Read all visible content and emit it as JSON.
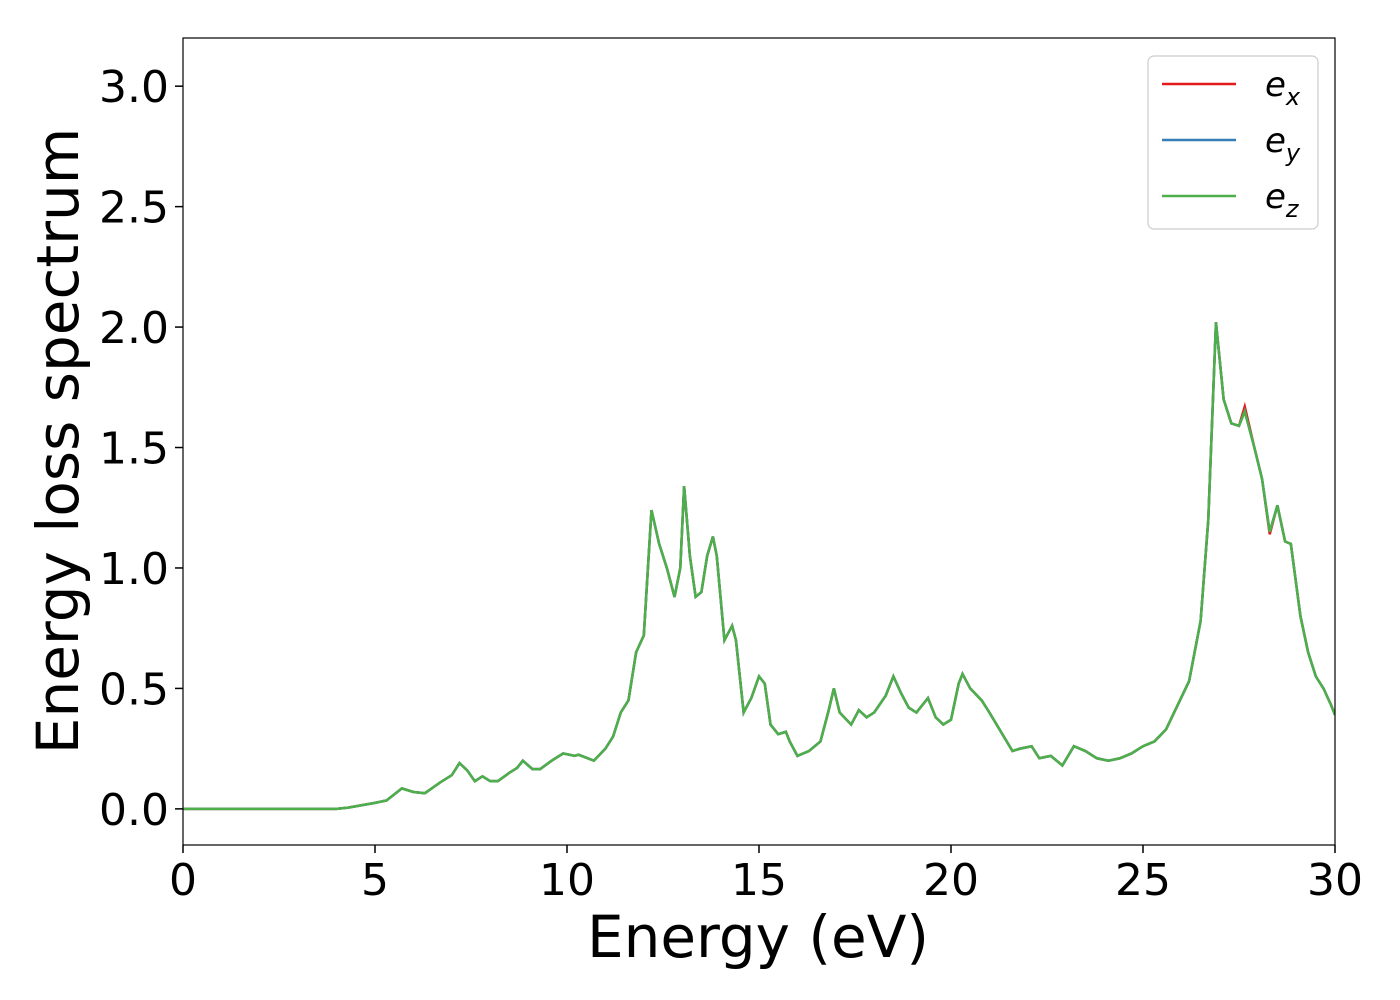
{
  "chart_data": {
    "type": "line",
    "xlabel": "Energy (eV)",
    "ylabel": "Energy loss spectrum",
    "x": [
      0,
      1,
      2,
      3,
      4,
      4.3,
      5,
      5.3,
      5.7,
      6.0,
      6.3,
      6.7,
      7.0,
      7.2,
      7.4,
      7.6,
      7.8,
      8.0,
      8.2,
      8.5,
      8.7,
      8.85,
      9.1,
      9.3,
      9.6,
      9.9,
      10.2,
      10.3,
      10.7,
      11.0,
      11.2,
      11.4,
      11.6,
      11.8,
      12.0,
      12.2,
      12.4,
      12.6,
      12.8,
      12.95,
      13.05,
      13.2,
      13.35,
      13.5,
      13.65,
      13.8,
      13.9,
      14.1,
      14.3,
      14.4,
      14.6,
      14.8,
      15.0,
      15.15,
      15.3,
      15.5,
      15.7,
      15.8,
      16.0,
      16.3,
      16.6,
      16.8,
      16.95,
      17.1,
      17.4,
      17.6,
      17.8,
      18.0,
      18.3,
      18.5,
      18.7,
      18.9,
      19.1,
      19.3,
      19.4,
      19.6,
      19.8,
      20.0,
      20.2,
      20.3,
      20.5,
      20.8,
      21.0,
      21.3,
      21.6,
      21.8,
      22.1,
      22.3,
      22.6,
      22.9,
      23.2,
      23.5,
      23.8,
      24.1,
      24.4,
      24.7,
      25.0,
      25.3,
      25.6,
      25.9,
      26.2,
      26.5,
      26.7,
      26.9,
      27.1,
      27.3,
      27.5,
      27.65,
      27.9,
      28.1,
      28.3,
      28.5,
      28.7,
      28.85,
      29.1,
      29.3,
      29.5,
      29.7,
      29.9,
      30.0
    ],
    "series": [
      {
        "name": "ex",
        "color": "#e41a1c",
        "values": [
          0,
          0,
          0,
          0,
          0,
          0.005,
          0.025,
          0.035,
          0.085,
          0.07,
          0.065,
          0.11,
          0.14,
          0.19,
          0.16,
          0.115,
          0.135,
          0.115,
          0.115,
          0.15,
          0.17,
          0.2,
          0.165,
          0.165,
          0.2,
          0.23,
          0.22,
          0.225,
          0.2,
          0.25,
          0.3,
          0.4,
          0.45,
          0.65,
          0.72,
          1.24,
          1.1,
          1.0,
          0.88,
          1.0,
          1.34,
          1.05,
          0.88,
          0.9,
          1.05,
          1.13,
          1.05,
          0.7,
          0.76,
          0.7,
          0.4,
          0.46,
          0.55,
          0.52,
          0.35,
          0.31,
          0.32,
          0.28,
          0.22,
          0.24,
          0.28,
          0.4,
          0.5,
          0.4,
          0.35,
          0.41,
          0.38,
          0.4,
          0.47,
          0.55,
          0.48,
          0.42,
          0.4,
          0.44,
          0.46,
          0.38,
          0.35,
          0.37,
          0.52,
          0.56,
          0.5,
          0.45,
          0.4,
          0.32,
          0.24,
          0.25,
          0.26,
          0.21,
          0.22,
          0.18,
          0.26,
          0.24,
          0.21,
          0.2,
          0.21,
          0.23,
          0.26,
          0.28,
          0.33,
          0.43,
          0.53,
          0.78,
          1.2,
          2.02,
          1.7,
          1.6,
          1.59,
          1.67,
          1.5,
          1.37,
          1.14,
          1.26,
          1.11,
          1.1,
          0.8,
          0.65,
          0.55,
          0.5,
          0.43,
          0.39
        ]
      },
      {
        "name": "ey",
        "color": "#377eb8",
        "values": [
          0,
          0,
          0,
          0,
          0,
          0.005,
          0.025,
          0.035,
          0.085,
          0.07,
          0.065,
          0.11,
          0.14,
          0.19,
          0.16,
          0.115,
          0.135,
          0.115,
          0.115,
          0.15,
          0.17,
          0.2,
          0.165,
          0.165,
          0.2,
          0.23,
          0.22,
          0.225,
          0.2,
          0.25,
          0.3,
          0.4,
          0.45,
          0.65,
          0.72,
          1.24,
          1.1,
          1.0,
          0.88,
          1.0,
          1.34,
          1.05,
          0.88,
          0.9,
          1.05,
          1.13,
          1.05,
          0.7,
          0.76,
          0.7,
          0.4,
          0.46,
          0.55,
          0.52,
          0.35,
          0.31,
          0.32,
          0.28,
          0.22,
          0.24,
          0.28,
          0.4,
          0.5,
          0.4,
          0.35,
          0.41,
          0.38,
          0.4,
          0.47,
          0.55,
          0.48,
          0.42,
          0.4,
          0.44,
          0.46,
          0.38,
          0.35,
          0.37,
          0.52,
          0.56,
          0.5,
          0.45,
          0.4,
          0.32,
          0.24,
          0.25,
          0.26,
          0.21,
          0.22,
          0.18,
          0.26,
          0.24,
          0.21,
          0.2,
          0.21,
          0.23,
          0.26,
          0.28,
          0.33,
          0.43,
          0.53,
          0.78,
          1.2,
          2.02,
          1.7,
          1.6,
          1.59,
          1.65,
          1.5,
          1.37,
          1.15,
          1.26,
          1.11,
          1.1,
          0.8,
          0.65,
          0.55,
          0.5,
          0.43,
          0.39
        ]
      },
      {
        "name": "ez",
        "color": "#4daf4a",
        "values": [
          0,
          0,
          0,
          0,
          0,
          0.005,
          0.025,
          0.035,
          0.085,
          0.07,
          0.065,
          0.11,
          0.14,
          0.19,
          0.16,
          0.115,
          0.135,
          0.115,
          0.115,
          0.15,
          0.17,
          0.2,
          0.165,
          0.165,
          0.2,
          0.23,
          0.22,
          0.225,
          0.2,
          0.25,
          0.3,
          0.4,
          0.45,
          0.65,
          0.72,
          1.24,
          1.1,
          1.0,
          0.88,
          1.0,
          1.34,
          1.05,
          0.88,
          0.9,
          1.05,
          1.13,
          1.05,
          0.7,
          0.76,
          0.7,
          0.4,
          0.46,
          0.55,
          0.52,
          0.35,
          0.31,
          0.32,
          0.28,
          0.22,
          0.24,
          0.28,
          0.4,
          0.5,
          0.4,
          0.35,
          0.41,
          0.38,
          0.4,
          0.47,
          0.55,
          0.48,
          0.42,
          0.4,
          0.44,
          0.46,
          0.38,
          0.35,
          0.37,
          0.52,
          0.56,
          0.5,
          0.45,
          0.4,
          0.32,
          0.24,
          0.25,
          0.26,
          0.21,
          0.22,
          0.18,
          0.26,
          0.24,
          0.21,
          0.2,
          0.21,
          0.23,
          0.26,
          0.28,
          0.33,
          0.43,
          0.53,
          0.78,
          1.2,
          2.02,
          1.7,
          1.6,
          1.59,
          1.65,
          1.5,
          1.37,
          1.15,
          1.26,
          1.11,
          1.1,
          0.8,
          0.65,
          0.55,
          0.5,
          0.43,
          0.39
        ]
      }
    ],
    "xlim": [
      0,
      30
    ],
    "xticks": [
      0,
      5,
      10,
      15,
      20,
      25,
      30
    ],
    "ylim": [
      -0.15,
      3.2
    ],
    "yticks": [
      {
        "value": 0,
        "label": "0.0"
      },
      0.5,
      {
        "value": 1,
        "label": "1.0"
      },
      1.5,
      {
        "value": 2,
        "label": "2.0"
      },
      2.5,
      {
        "value": 3,
        "label": "3.0"
      }
    ],
    "grid": false,
    "legend": "upper right"
  }
}
